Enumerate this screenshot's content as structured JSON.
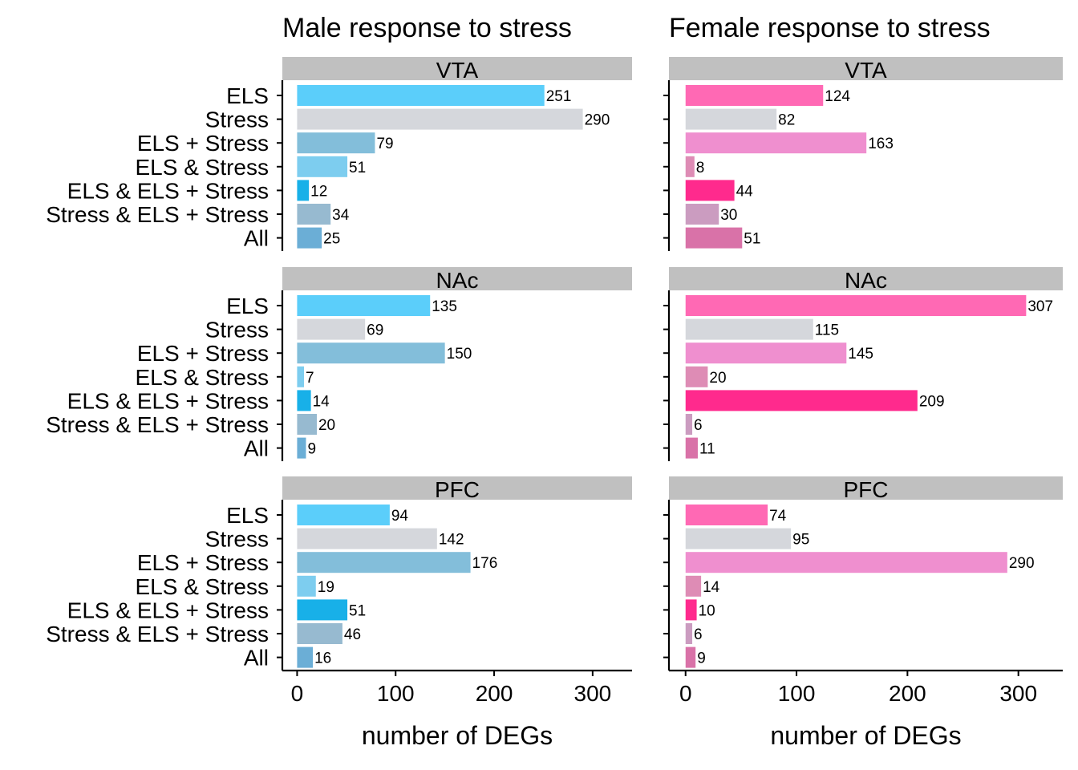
{
  "chart_data": [
    {
      "type": "bar",
      "orientation": "horizontal",
      "title": "Male response to stress",
      "xlabel": "number of DEGs",
      "xlim": [
        -15,
        340
      ],
      "xticks": [
        0,
        100,
        200,
        300
      ],
      "categories": [
        "ELS",
        "Stress",
        "ELS + Stress",
        "ELS & Stress",
        "ELS & ELS + Stress",
        "Stress & ELS + Stress",
        "All"
      ],
      "colors": [
        "#5BCEFA",
        "#D5D7DC",
        "#83BEDA",
        "#7DCDEF",
        "#18B0E8",
        "#97BAD0",
        "#6BAED6"
      ],
      "panels": [
        {
          "region": "VTA",
          "values": [
            251,
            290,
            79,
            51,
            12,
            34,
            25
          ]
        },
        {
          "region": "NAc",
          "values": [
            135,
            69,
            150,
            7,
            14,
            20,
            9
          ]
        },
        {
          "region": "PFC",
          "values": [
            94,
            142,
            176,
            19,
            51,
            46,
            16
          ]
        }
      ]
    },
    {
      "type": "bar",
      "orientation": "horizontal",
      "title": "Female response to stress",
      "xlabel": "number of DEGs",
      "xlim": [
        -15,
        340
      ],
      "xticks": [
        0,
        100,
        200,
        300
      ],
      "categories": [
        "ELS",
        "Stress",
        "ELS + Stress",
        "ELS & Stress",
        "ELS & ELS + Stress",
        "Stress & ELS + Stress",
        "All"
      ],
      "colors": [
        "#FF69B4",
        "#D5D7DC",
        "#EF8FCF",
        "#DE8CB5",
        "#FF2A8D",
        "#CB9CC0",
        "#D972A8"
      ],
      "panels": [
        {
          "region": "VTA",
          "values": [
            124,
            82,
            163,
            8,
            44,
            30,
            51
          ]
        },
        {
          "region": "NAc",
          "values": [
            307,
            115,
            145,
            20,
            209,
            6,
            11
          ]
        },
        {
          "region": "PFC",
          "values": [
            74,
            95,
            290,
            14,
            10,
            6,
            9
          ]
        }
      ]
    }
  ]
}
